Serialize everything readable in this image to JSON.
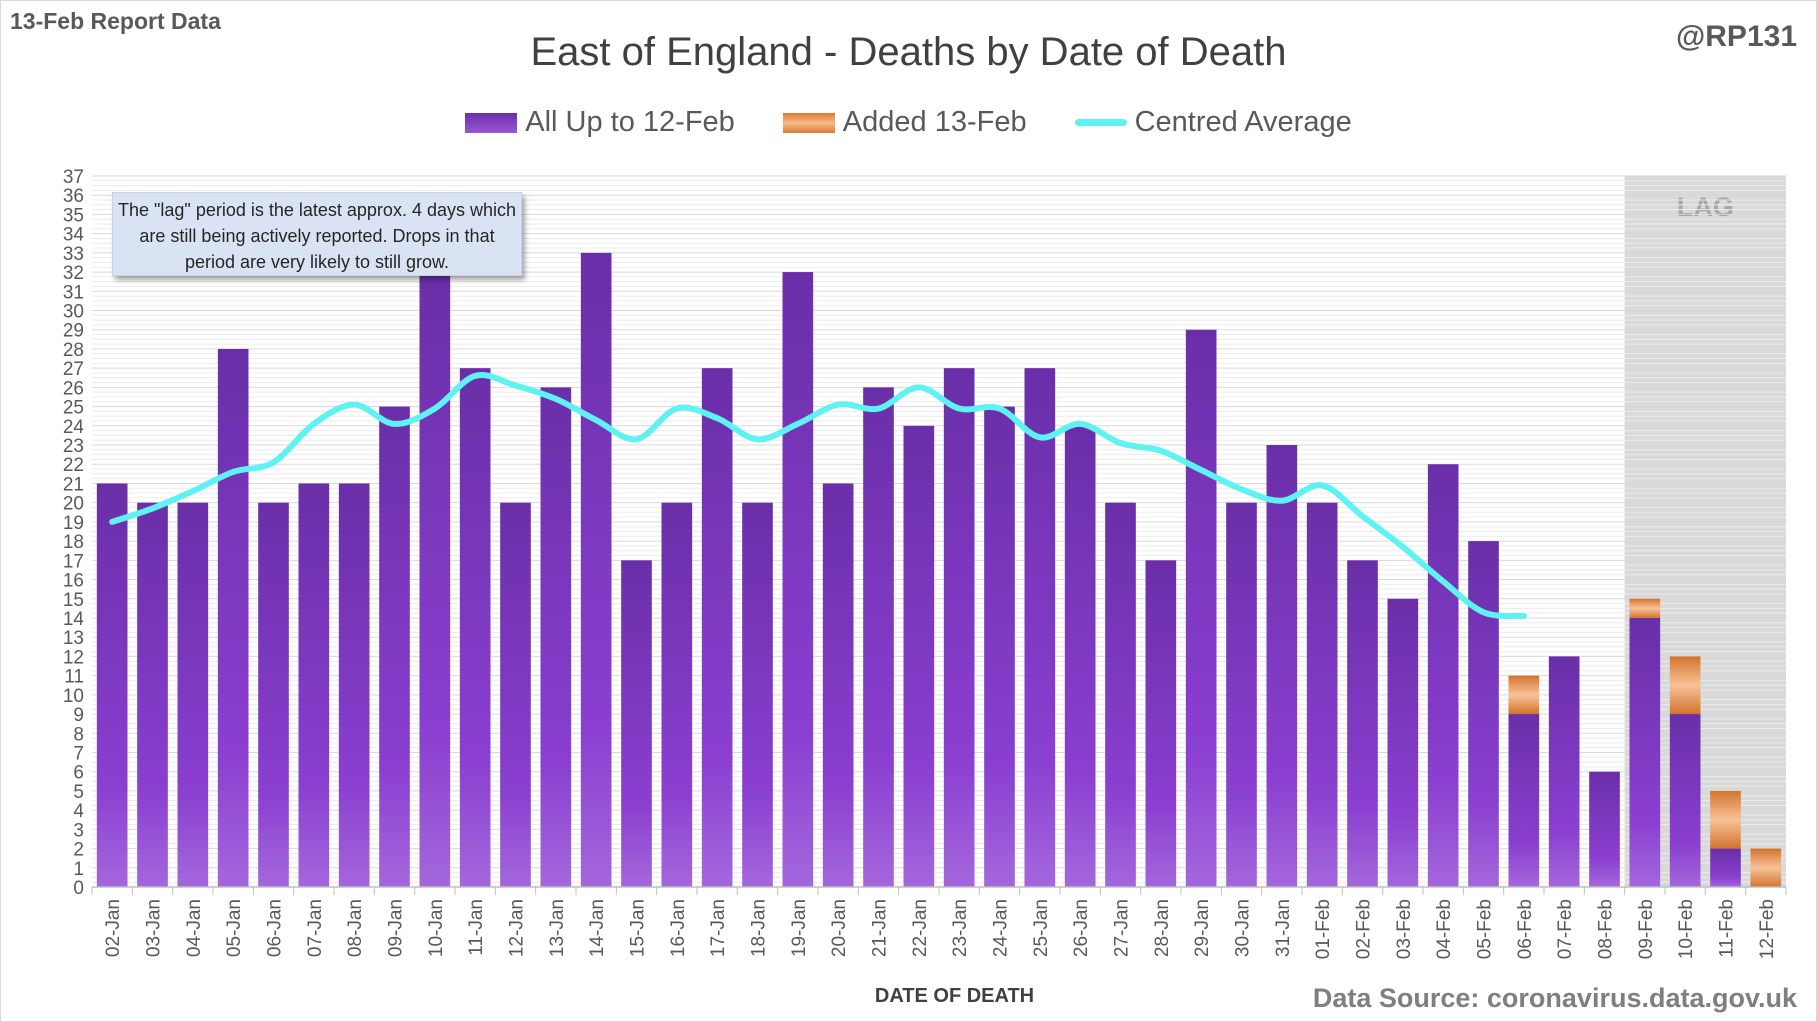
{
  "header": {
    "report_label": "13-Feb Report Data",
    "author": "@RP131",
    "source": "Data Source: coronavirus.data.gov.uk"
  },
  "note": {
    "text": "The \"lag\" period is the latest approx. 4 days which are still being actively reported. Drops in that period are very likely to still grow."
  },
  "colors": {
    "base_series": "#7a3bc0",
    "added_series": "#e8904f",
    "average_line": "#5ff2f2",
    "lag_shade": "#d9d9d9"
  },
  "chart_data": {
    "type": "bar",
    "title": "East of England - Deaths by Date of Death",
    "xlabel": "DATE OF DEATH",
    "ylabel": "",
    "ylim": [
      0,
      37
    ],
    "yticks": [
      0,
      1,
      2,
      3,
      4,
      5,
      6,
      7,
      8,
      9,
      10,
      11,
      12,
      13,
      14,
      15,
      16,
      17,
      18,
      19,
      20,
      21,
      22,
      23,
      24,
      25,
      26,
      27,
      28,
      29,
      30,
      31,
      32,
      33,
      34,
      35,
      36,
      37
    ],
    "grid": true,
    "legend_position": "top",
    "stacked": true,
    "lag_label": "LAG",
    "lag_categories": [
      "09-Feb",
      "10-Feb",
      "11-Feb",
      "12-Feb"
    ],
    "categories": [
      "02-Jan",
      "03-Jan",
      "04-Jan",
      "05-Jan",
      "06-Jan",
      "07-Jan",
      "08-Jan",
      "09-Jan",
      "10-Jan",
      "11-Jan",
      "12-Jan",
      "13-Jan",
      "14-Jan",
      "15-Jan",
      "16-Jan",
      "17-Jan",
      "18-Jan",
      "19-Jan",
      "20-Jan",
      "21-Jan",
      "22-Jan",
      "23-Jan",
      "24-Jan",
      "25-Jan",
      "26-Jan",
      "27-Jan",
      "28-Jan",
      "29-Jan",
      "30-Jan",
      "31-Jan",
      "01-Feb",
      "02-Feb",
      "03-Feb",
      "04-Feb",
      "05-Feb",
      "06-Feb",
      "07-Feb",
      "08-Feb",
      "09-Feb",
      "10-Feb",
      "11-Feb",
      "12-Feb"
    ],
    "series": [
      {
        "name": "All Up to 12-Feb",
        "type": "bar",
        "values": [
          21,
          20,
          20,
          28,
          20,
          21,
          21,
          25,
          32,
          27,
          20,
          26,
          33,
          17,
          20,
          27,
          20,
          32,
          21,
          26,
          24,
          27,
          25,
          27,
          24,
          20,
          17,
          29,
          20,
          23,
          20,
          17,
          15,
          22,
          18,
          9,
          12,
          6,
          14,
          9,
          2,
          0
        ]
      },
      {
        "name": "Added 13-Feb",
        "type": "bar",
        "values": [
          0,
          0,
          0,
          0,
          0,
          0,
          0,
          0,
          0,
          0,
          0,
          0,
          0,
          0,
          0,
          0,
          0,
          0,
          0,
          0,
          0,
          0,
          0,
          0,
          0,
          0,
          0,
          0,
          0,
          0,
          0,
          0,
          0,
          0,
          0,
          2,
          0,
          0,
          1,
          3,
          3,
          2
        ]
      },
      {
        "name": "Centred Average",
        "type": "line",
        "values": [
          19,
          19.7,
          20.6,
          21.6,
          22.1,
          24.1,
          25.1,
          24.1,
          24.9,
          26.6,
          26.1,
          25.4,
          24.3,
          23.3,
          24.9,
          24.4,
          23.3,
          24.1,
          25.1,
          24.9,
          26,
          24.9,
          24.9,
          23.4,
          24.1,
          23.1,
          22.7,
          21.7,
          20.7,
          20.1,
          20.9,
          19.3,
          17.7,
          15.9,
          14.3,
          14.1,
          null,
          null,
          null,
          null,
          null,
          null
        ]
      }
    ]
  }
}
